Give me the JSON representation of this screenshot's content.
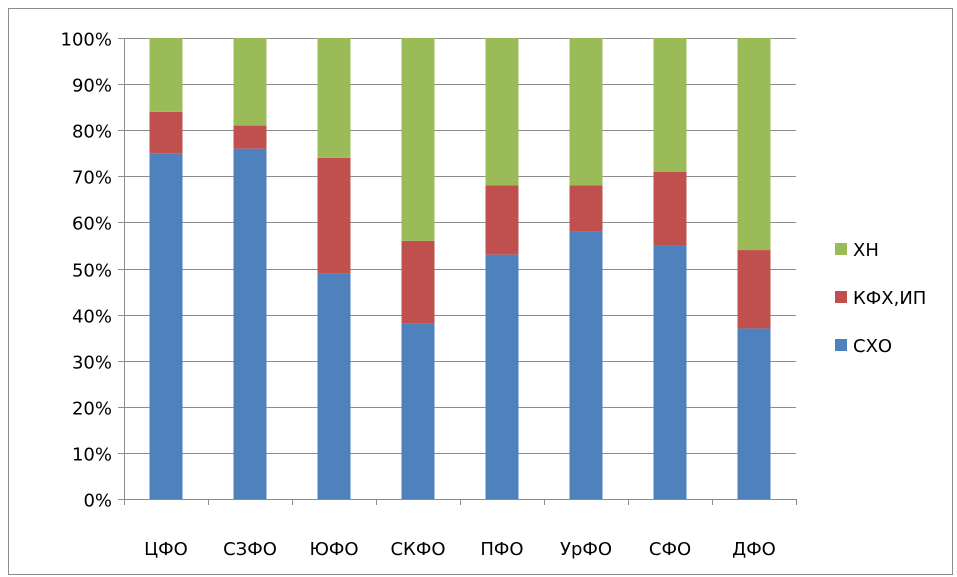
{
  "chart_data": {
    "type": "bar",
    "stacked": true,
    "percent": true,
    "title": "",
    "xlabel": "",
    "ylabel": "",
    "ylim": [
      0,
      100
    ],
    "yticks": [
      "0%",
      "10%",
      "20%",
      "30%",
      "40%",
      "50%",
      "60%",
      "70%",
      "80%",
      "90%",
      "100%"
    ],
    "grid": true,
    "legend_position": "right",
    "categories": [
      "ЦФО",
      "СЗФО",
      "ЮФО",
      "СКФО",
      "ПФО",
      "УрФО",
      "СФО",
      "ДФО"
    ],
    "series": [
      {
        "name": "СХО",
        "color": "#4f81bd",
        "values": [
          75,
          76,
          49,
          38,
          53,
          58,
          55,
          37
        ]
      },
      {
        "name": "КФХ,ИП",
        "color": "#c0504d",
        "values": [
          9,
          5,
          25,
          18,
          15,
          10,
          16,
          17
        ]
      },
      {
        "name": "ХН",
        "color": "#9bbb59",
        "values": [
          16,
          19,
          26,
          44,
          32,
          32,
          29,
          46
        ]
      }
    ],
    "legend_order": [
      "ХН",
      "КФХ,ИП",
      "СХО"
    ]
  }
}
